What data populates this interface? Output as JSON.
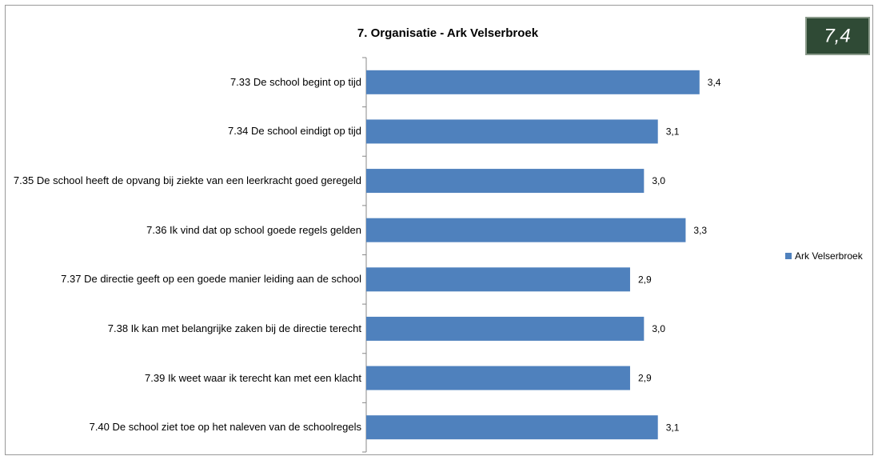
{
  "chart_data": {
    "type": "bar",
    "orientation": "horizontal",
    "title": "7. Organisatie - Ark Velserbroek",
    "badge": "7,4",
    "categories": [
      "7.33 De school begint op tijd",
      "7.34 De school eindigt op tijd",
      "7.35 De school heeft de opvang bij ziekte van een leerkracht goed geregeld",
      "7.36 Ik vind dat op school goede regels gelden",
      "7.37 De directie geeft op een goede manier leiding aan de school",
      "7.38 Ik kan met belangrijke zaken bij de directie terecht",
      "7.39 Ik weet waar ik terecht kan met een klacht",
      "7.40 De school ziet toe op het naleven van de schoolregels"
    ],
    "series": [
      {
        "name": "Ark Velserbroek",
        "color": "#4f81bd",
        "values": [
          3.4,
          3.1,
          3.0,
          3.3,
          2.9,
          3.0,
          2.9,
          3.1
        ],
        "value_labels": [
          "3,4",
          "3,1",
          "3,0",
          "3,3",
          "2,9",
          "3,0",
          "2,9",
          "3,1"
        ]
      }
    ],
    "xlim": [
      1,
      4
    ],
    "legend": "right"
  }
}
